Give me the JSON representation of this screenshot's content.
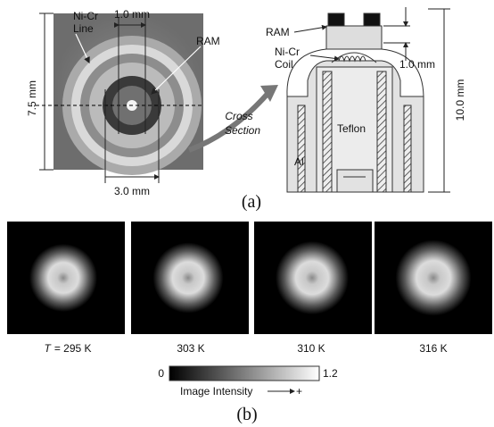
{
  "panel_a": {
    "label": "(a)",
    "photo": {
      "wire_label": [
        "Ni-Cr",
        "Line"
      ],
      "ram_label": "RAM",
      "inner_width": "1.0 mm",
      "outer_width": "3.0 mm",
      "height": "7.5 mm"
    },
    "arrow_label": [
      "Cross",
      "Section"
    ],
    "cross_section": {
      "ram_label": "RAM",
      "coil_label": [
        "Ni-Cr",
        "Coil"
      ],
      "gap": "1.0 mm",
      "height": "10.0 mm",
      "teflon_label": "Teflon",
      "al_label": "Al"
    }
  },
  "panel_b": {
    "label": "(b)",
    "images": [
      {
        "symbol": "T",
        "caption": "= 295 K"
      },
      {
        "caption": "303 K"
      },
      {
        "caption": "310 K"
      },
      {
        "caption": "316 K"
      }
    ],
    "colorbar": {
      "min": 0,
      "max": 1.2,
      "label": "Image Intensity",
      "direction": "+"
    }
  }
}
